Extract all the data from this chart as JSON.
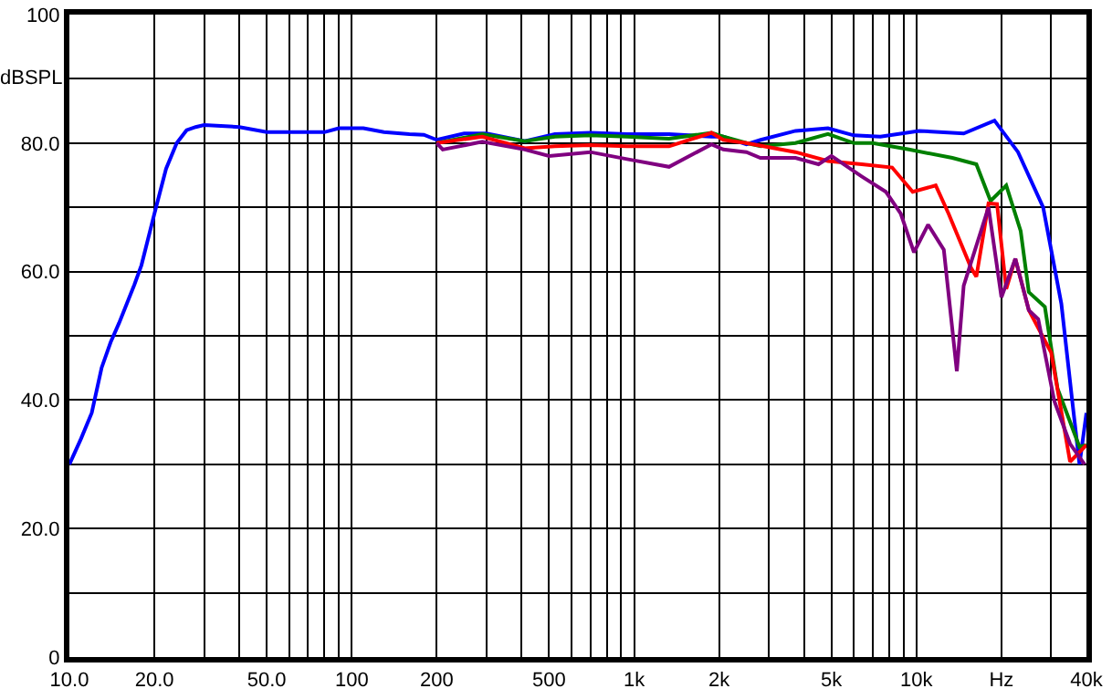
{
  "chart_data": {
    "type": "line",
    "ylabel": "dBSPL",
    "log": "x",
    "grid": true,
    "line_style": "solid",
    "marker": "none",
    "xlim": [
      10,
      40000
    ],
    "ylim": [
      0,
      100
    ],
    "xticks": [
      {
        "value": 10,
        "label": "10.0"
      },
      {
        "value": 20,
        "label": "20.0"
      },
      {
        "value": 30,
        "label": null
      },
      {
        "value": 40,
        "label": null
      },
      {
        "value": 50,
        "label": "50.0"
      },
      {
        "value": 60,
        "label": null
      },
      {
        "value": 70,
        "label": null
      },
      {
        "value": 80,
        "label": null
      },
      {
        "value": 90,
        "label": null
      },
      {
        "value": 100,
        "label": "100"
      },
      {
        "value": 200,
        "label": "200"
      },
      {
        "value": 300,
        "label": null
      },
      {
        "value": 400,
        "label": null
      },
      {
        "value": 500,
        "label": "500"
      },
      {
        "value": 600,
        "label": null
      },
      {
        "value": 700,
        "label": null
      },
      {
        "value": 800,
        "label": null
      },
      {
        "value": 900,
        "label": null
      },
      {
        "value": 1000,
        "label": "1k"
      },
      {
        "value": 2000,
        "label": "2k"
      },
      {
        "value": 3000,
        "label": null
      },
      {
        "value": 4000,
        "label": null
      },
      {
        "value": 5000,
        "label": "5k"
      },
      {
        "value": 6000,
        "label": null
      },
      {
        "value": 7000,
        "label": null
      },
      {
        "value": 8000,
        "label": null
      },
      {
        "value": 9000,
        "label": null
      },
      {
        "value": 10000,
        "label": "10k"
      },
      {
        "value": 20000,
        "label": "Hz"
      },
      {
        "value": 30000,
        "label": null
      },
      {
        "value": 40000,
        "label": "40k"
      }
    ],
    "yticks": [
      0,
      {
        "value": 10,
        "label": null
      },
      {
        "value": 20,
        "label": "20.0"
      },
      {
        "value": 30,
        "label": null
      },
      {
        "value": 40,
        "label": "40.0"
      },
      {
        "value": 50,
        "label": null
      },
      {
        "value": 60,
        "label": "60.0"
      },
      {
        "value": 70,
        "label": null
      },
      {
        "value": 80,
        "label": "80.0"
      },
      {
        "value": 90,
        "label": null
      },
      100
    ],
    "series": [
      {
        "color": "#0000ff",
        "x": [
          10,
          11,
          12,
          13,
          14,
          15,
          17,
          18,
          20,
          22,
          24,
          26,
          28,
          30,
          40,
          50,
          80,
          90,
          110,
          130,
          160,
          180,
          200,
          250,
          300,
          410,
          524,
          700,
          944,
          1330,
          1880,
          2070,
          2500,
          2810,
          3730,
          4860,
          6000,
          7450,
          10200,
          14700,
          18900,
          22900,
          28100,
          32600,
          35600,
          37800,
          40000
        ],
        "values": [
          30,
          34,
          38,
          45,
          49,
          52,
          58,
          61,
          69,
          76,
          80,
          82,
          82.5,
          82.8,
          82.5,
          81.7,
          81.7,
          82.3,
          82.3,
          81.7,
          81.4,
          81.3,
          80.5,
          81.5,
          81.5,
          80.3,
          81.4,
          81.6,
          81.4,
          81.4,
          81,
          81,
          79.8,
          80.5,
          81.9,
          82.3,
          81.2,
          81,
          81.9,
          81.5,
          83.5,
          78.6,
          70,
          55,
          40,
          30,
          38
        ]
      },
      {
        "color": "#008000",
        "x": [
          200,
          290,
          410,
          524,
          700,
          944,
          1330,
          1880,
          2070,
          2500,
          2810,
          3730,
          4860,
          6000,
          7000,
          9400,
          13400,
          16300,
          18300,
          20800,
          23400,
          25000,
          28500,
          31600,
          37800,
          40000
        ],
        "values": [
          80,
          81.4,
          80.3,
          81,
          81.2,
          81,
          80.7,
          81.6,
          81,
          80,
          79.5,
          80,
          81.4,
          80,
          80,
          79,
          77.7,
          76.7,
          71,
          73.4,
          66.3,
          56.8,
          54.5,
          41.8,
          32.7,
          33
        ]
      },
      {
        "color": "#ff0000",
        "x": [
          200,
          290,
          410,
          524,
          700,
          944,
          1330,
          1880,
          2070,
          2500,
          3730,
          4860,
          6400,
          8200,
          9700,
          11700,
          13000,
          15600,
          16300,
          18000,
          19300,
          20800,
          22400,
          25000,
          30000,
          35000,
          40000
        ],
        "values": [
          80,
          81,
          79.2,
          79.5,
          79.7,
          79.5,
          79.5,
          81.6,
          80.5,
          80,
          78.6,
          77.2,
          76.7,
          76.2,
          72.4,
          73.4,
          69,
          60.6,
          59.2,
          70.6,
          70.5,
          57.3,
          62,
          54,
          47.4,
          30.4,
          33
        ]
      },
      {
        "color": "#800080",
        "x": [
          200,
          210,
          290,
          410,
          500,
          700,
          944,
          1330,
          1880,
          2070,
          2500,
          2800,
          3730,
          4500,
          5000,
          6400,
          7800,
          8800,
          9800,
          11000,
          12500,
          13900,
          14700,
          18000,
          20000,
          22400,
          25000,
          27000,
          30800,
          35000,
          39400
        ],
        "values": [
          80,
          79,
          80.2,
          79,
          78,
          78.6,
          77.5,
          76.3,
          79.8,
          79,
          78.6,
          77.7,
          77.7,
          76.7,
          78,
          74.8,
          72.4,
          69,
          63,
          67.3,
          63.4,
          44.5,
          57.8,
          70,
          56,
          62,
          54,
          52.6,
          39.8,
          33.2,
          30
        ]
      }
    ]
  }
}
